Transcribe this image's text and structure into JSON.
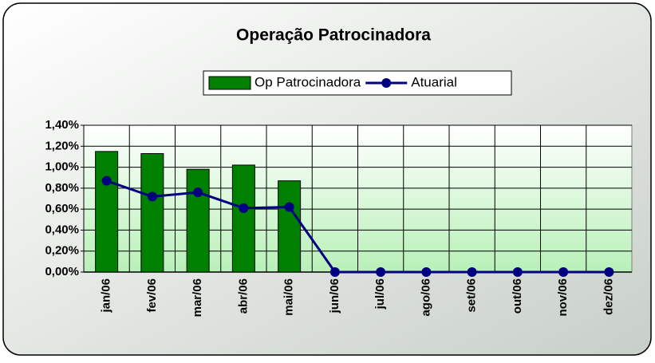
{
  "chart_data": {
    "type": "bar",
    "title": "Operação Patrocinadora",
    "categories": [
      "jan/06",
      "fev/06",
      "mar/06",
      "abr/06",
      "mai/06",
      "jun/06",
      "jul/06",
      "ago/06",
      "set/06",
      "out/06",
      "nov/06",
      "dez/06"
    ],
    "series": [
      {
        "name": "Op Patrocinadora",
        "type": "bar",
        "color": "#008000",
        "values": [
          1.15,
          1.13,
          0.98,
          1.02,
          0.87,
          null,
          null,
          null,
          null,
          null,
          null,
          null
        ]
      },
      {
        "name": "Atuarial",
        "type": "line",
        "color": "#000080",
        "values": [
          0.87,
          0.72,
          0.76,
          0.61,
          0.62,
          0,
          0,
          0,
          0,
          0,
          0,
          0
        ]
      }
    ],
    "ylim": [
      0,
      1.4
    ],
    "yticks": [
      {
        "value": 0,
        "label": "0,00%"
      },
      {
        "value": 0.2,
        "label": "0,20%"
      },
      {
        "value": 0.4,
        "label": "0,40%"
      },
      {
        "value": 0.6,
        "label": "0,60%"
      },
      {
        "value": 0.8,
        "label": "0,80%"
      },
      {
        "value": 1.0,
        "label": "1,00%"
      },
      {
        "value": 1.2,
        "label": "1,20%"
      },
      {
        "value": 1.4,
        "label": "1,40%"
      }
    ],
    "grid": true,
    "legend": "top"
  }
}
